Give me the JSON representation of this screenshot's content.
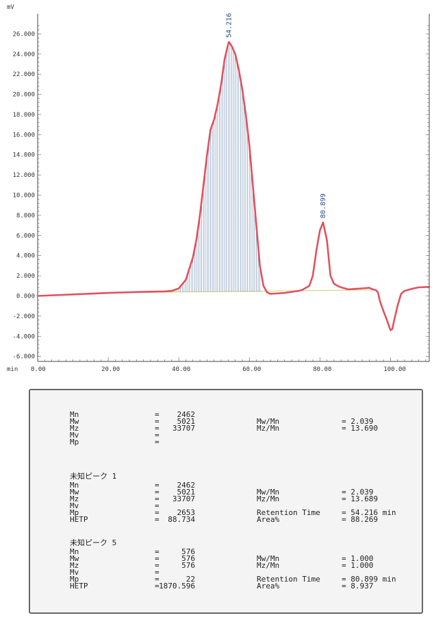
{
  "chart_data": {
    "type": "line",
    "y_unit": "mV",
    "x_unit": "min",
    "xlim": [
      0,
      111
    ],
    "ylim": [
      -6.5,
      28
    ],
    "x_ticks": [
      "0.00",
      "20.00",
      "40.00",
      "60.00",
      "80.00",
      "100.00"
    ],
    "x_tick_values": [
      0,
      20,
      40,
      60,
      80,
      100
    ],
    "y_ticks": [
      "-6.000",
      "-4.000",
      "-2.000",
      "0.000",
      "2.000",
      "4.000",
      "6.000",
      "8.000",
      "10.000",
      "12.000",
      "14.000",
      "16.000",
      "18.000",
      "20.000",
      "22.000",
      "24.000",
      "26.000"
    ],
    "y_tick_values": [
      -6,
      -4,
      -2,
      0,
      2,
      4,
      6,
      8,
      10,
      12,
      14,
      16,
      18,
      20,
      22,
      24,
      26
    ],
    "series": [
      {
        "color": "#e0525f",
        "x": [
          0,
          10,
          20,
          30,
          36,
          38,
          40,
          42,
          44,
          45,
          46,
          47,
          48,
          49,
          50,
          51,
          52,
          53,
          54,
          54.216,
          55,
          56,
          57,
          58,
          59,
          60,
          61,
          62,
          63,
          64,
          65,
          66,
          70,
          72,
          74,
          75,
          76,
          77,
          78,
          79,
          80,
          80.899,
          82,
          83,
          84,
          85,
          86,
          88,
          90,
          92,
          94,
          95,
          96,
          96.5,
          97,
          98,
          99,
          100,
          100.5,
          101,
          102,
          103,
          104,
          106,
          108,
          111
        ],
        "y": [
          0,
          0.15,
          0.3,
          0.4,
          0.45,
          0.5,
          0.75,
          1.6,
          3.8,
          5.6,
          8,
          11,
          14,
          16.5,
          17.5,
          19,
          21,
          23.5,
          25,
          25.2,
          24.8,
          24,
          22.5,
          20.5,
          18,
          15,
          11,
          7,
          3,
          1,
          0.35,
          0.2,
          0.3,
          0.4,
          0.5,
          0.6,
          0.8,
          1,
          2,
          4.5,
          6.5,
          7.3,
          5.5,
          2,
          1.2,
          1,
          0.85,
          0.65,
          0.7,
          0.75,
          0.8,
          0.65,
          0.55,
          0.3,
          -0.5,
          -1.5,
          -2.4,
          -3.4,
          -3.3,
          -2.5,
          -1,
          0.2,
          0.5,
          0.7,
          0.85,
          0.9
        ]
      }
    ],
    "peak_labels": [
      {
        "x": 54.216,
        "y": 25.2,
        "text": "54.216"
      },
      {
        "x": 80.899,
        "y": 7.3,
        "text": "80.899"
      }
    ],
    "integration_region": [
      36,
      63
    ],
    "grid": false,
    "line_color": "#e0525f",
    "hatch_color": "#7d98b8",
    "baseline_color": "#c9d36a"
  },
  "results": {
    "overall": {
      "rows": [
        {
          "k": "Mn",
          "v": "2462"
        },
        {
          "k": "Mw",
          "v": "5021"
        },
        {
          "k": "Mz",
          "v": "33707"
        },
        {
          "k": "Mv",
          "v": ""
        },
        {
          "k": "Mp",
          "v": ""
        }
      ],
      "right": [
        {
          "k": "Mw/Mn",
          "v": "= 2.039"
        },
        {
          "k": "Mz/Mn",
          "v": "= 13.690"
        }
      ]
    },
    "peak1": {
      "title": "未知ピーク 1",
      "rows": [
        {
          "k": "Mn",
          "v": "2462"
        },
        {
          "k": "Mw",
          "v": "5021"
        },
        {
          "k": "Mz",
          "v": "33707"
        },
        {
          "k": "Mv",
          "v": ""
        },
        {
          "k": "Mp",
          "v": "2653"
        },
        {
          "k": "HETP",
          "v": "88.734"
        }
      ],
      "right": [
        {
          "k": "Mw/Mn",
          "v": "= 2.039"
        },
        {
          "k": "Mz/Mn",
          "v": "= 13.689"
        },
        {
          "k": "",
          "v": ""
        },
        {
          "k": "Retention Time",
          "v": "= 54.216 min"
        },
        {
          "k": "Area%",
          "v": "= 88.269"
        }
      ]
    },
    "peak5": {
      "title": "未知ピーク 5",
      "rows": [
        {
          "k": "Mn",
          "v": "576"
        },
        {
          "k": "Mw",
          "v": "576"
        },
        {
          "k": "Mz",
          "v": "576"
        },
        {
          "k": "Mv",
          "v": ""
        },
        {
          "k": "Mp",
          "v": "22"
        },
        {
          "k": "HETP",
          "v": "1870.596"
        }
      ],
      "right": [
        {
          "k": "Mw/Mn",
          "v": "= 1.000"
        },
        {
          "k": "Mz/Mn",
          "v": "= 1.000"
        },
        {
          "k": "",
          "v": ""
        },
        {
          "k": "Retention Time",
          "v": "= 80.899 min"
        },
        {
          "k": "Area%",
          "v": "= 8.937"
        }
      ]
    }
  }
}
